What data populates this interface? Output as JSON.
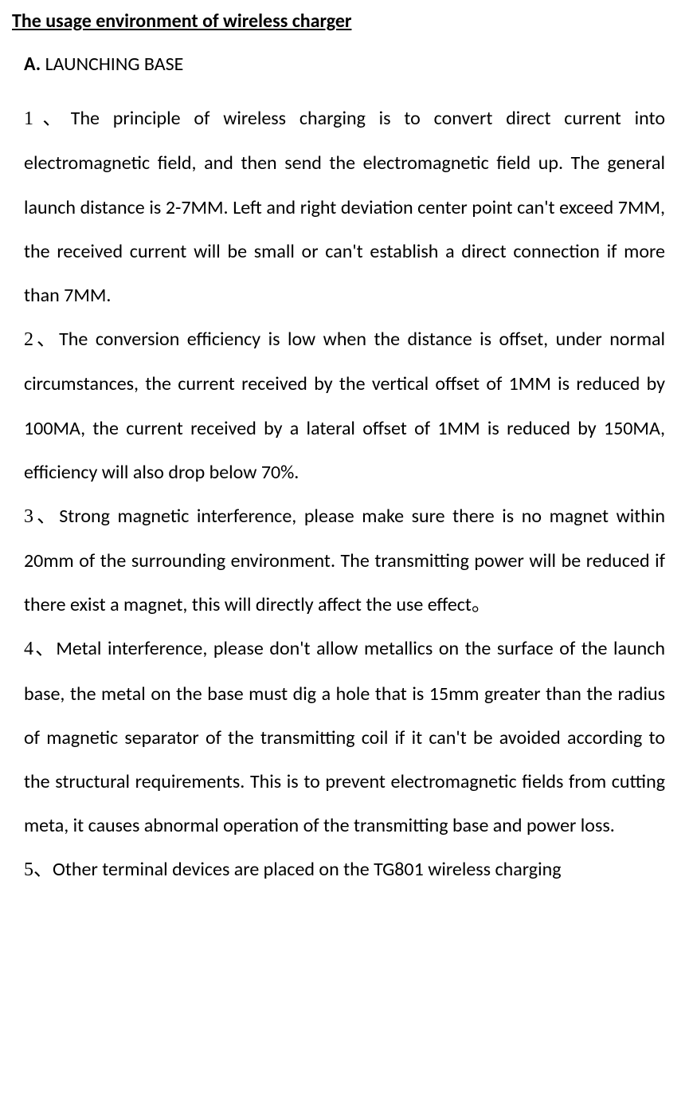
{
  "document": {
    "title": "The usage environment of wireless charger",
    "section_a": {
      "label": "A.",
      "heading": " LAUNCHING BASE"
    },
    "items": {
      "item1": {
        "number": "1、",
        "text": "The principle of wireless charging is to convert direct current into electromagnetic field, and then send the electromagnetic field up. The general launch distance is 2-7MM. Left and right deviation center point can't exceed 7MM, the received current will be small or can't establish a direct connection if more than 7MM."
      },
      "item2": {
        "number": "2、",
        "text": "The conversion efficiency is low when the distance is offset, under normal circumstances, the current received by the vertical offset of 1MM is reduced by 100MA, the current received by a lateral offset of 1MM is reduced by 150MA, efficiency will also drop below 70%."
      },
      "item3": {
        "number": "3、",
        "text": "Strong magnetic interference, please make sure there is no magnet within 20mm of the surrounding environment. The transmitting power will be reduced if there exist a magnet, this will directly affect the use effect。"
      },
      "item4": {
        "number": "4、",
        "text": "Metal interference, please don't allow metallics on the surface of the launch base, the metal on the base must dig a hole that is 15mm greater than the radius of magnetic separator of the transmitting coil if it can't be avoided according to the structural requirements. This is to prevent electromagnetic fields from cutting meta, it causes abnormal operation of the transmitting base and power loss."
      },
      "item5": {
        "number": "5、",
        "text": "Other terminal devices are placed on the TG801 wireless charging"
      }
    }
  }
}
